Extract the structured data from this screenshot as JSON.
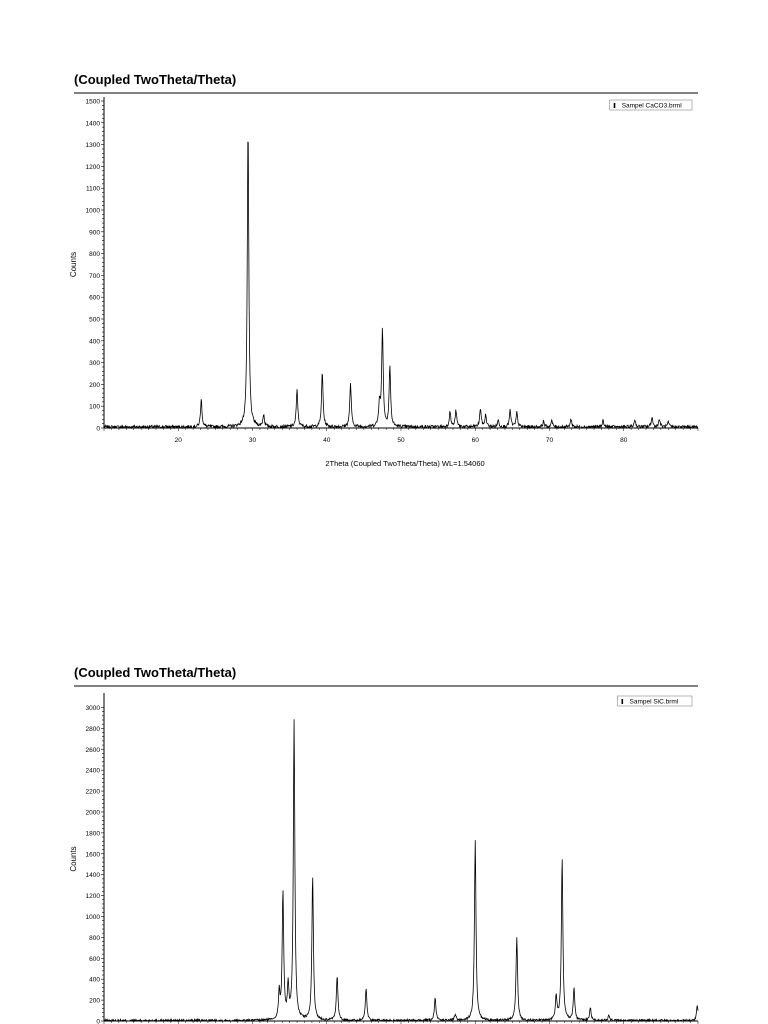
{
  "chart_data": [
    {
      "type": "line",
      "title": "(Coupled TwoTheta/Theta)",
      "xlabel": "2Theta (Coupled TwoTheta/Theta) WL=1.54060",
      "ylabel": "Counts",
      "legend": {
        "label": "Sampel CaCO3.brml",
        "placement": "top-right"
      },
      "xlim": [
        10,
        90
      ],
      "ylim": [
        0,
        1500
      ],
      "xticks": [
        20,
        30,
        40,
        50,
        60,
        70,
        80
      ],
      "yticks": [
        0,
        100,
        200,
        300,
        400,
        500,
        600,
        700,
        800,
        900,
        1000,
        1100,
        1200,
        1300,
        1400,
        1500
      ],
      "baseline": 5,
      "peaks": [
        {
          "x": 23.1,
          "y": 125
        },
        {
          "x": 29.4,
          "y": 1375
        },
        {
          "x": 31.5,
          "y": 55
        },
        {
          "x": 36.0,
          "y": 170
        },
        {
          "x": 39.4,
          "y": 250
        },
        {
          "x": 43.2,
          "y": 200
        },
        {
          "x": 47.1,
          "y": 110
        },
        {
          "x": 47.5,
          "y": 450
        },
        {
          "x": 48.5,
          "y": 275
        },
        {
          "x": 56.6,
          "y": 70
        },
        {
          "x": 57.4,
          "y": 75
        },
        {
          "x": 60.7,
          "y": 85
        },
        {
          "x": 61.4,
          "y": 55
        },
        {
          "x": 63.1,
          "y": 30
        },
        {
          "x": 64.7,
          "y": 75
        },
        {
          "x": 65.6,
          "y": 65
        },
        {
          "x": 69.2,
          "y": 25
        },
        {
          "x": 70.3,
          "y": 28
        },
        {
          "x": 72.9,
          "y": 35
        },
        {
          "x": 77.2,
          "y": 30
        },
        {
          "x": 81.5,
          "y": 35
        },
        {
          "x": 83.8,
          "y": 45
        },
        {
          "x": 84.8,
          "y": 35
        },
        {
          "x": 86.0,
          "y": 20
        }
      ]
    },
    {
      "type": "line",
      "title": "(Coupled TwoTheta/Theta)",
      "xlabel": "",
      "ylabel": "Counts",
      "legend": {
        "label": "Sampel SiC.brml",
        "placement": "top-right"
      },
      "xlim": [
        10,
        90
      ],
      "ylim": [
        0,
        3100
      ],
      "yticks": [
        0,
        200,
        400,
        600,
        800,
        1000,
        1200,
        1400,
        1600,
        1800,
        2000,
        2200,
        2400,
        2600,
        2800,
        3000
      ],
      "baseline": 5,
      "peaks": [
        {
          "x": 33.6,
          "y": 250
        },
        {
          "x": 34.1,
          "y": 1230
        },
        {
          "x": 34.8,
          "y": 310
        },
        {
          "x": 35.6,
          "y": 2870
        },
        {
          "x": 38.1,
          "y": 1380
        },
        {
          "x": 41.4,
          "y": 430
        },
        {
          "x": 45.3,
          "y": 310
        },
        {
          "x": 54.6,
          "y": 210
        },
        {
          "x": 57.3,
          "y": 60
        },
        {
          "x": 59.9,
          "y": 80
        },
        {
          "x": 60.0,
          "y": 1670
        },
        {
          "x": 65.5,
          "y": 50
        },
        {
          "x": 65.6,
          "y": 770
        },
        {
          "x": 70.9,
          "y": 230
        },
        {
          "x": 71.7,
          "y": 1560
        },
        {
          "x": 73.3,
          "y": 310
        },
        {
          "x": 75.5,
          "y": 120
        },
        {
          "x": 78.0,
          "y": 50
        },
        {
          "x": 89.9,
          "y": 140
        }
      ]
    }
  ]
}
